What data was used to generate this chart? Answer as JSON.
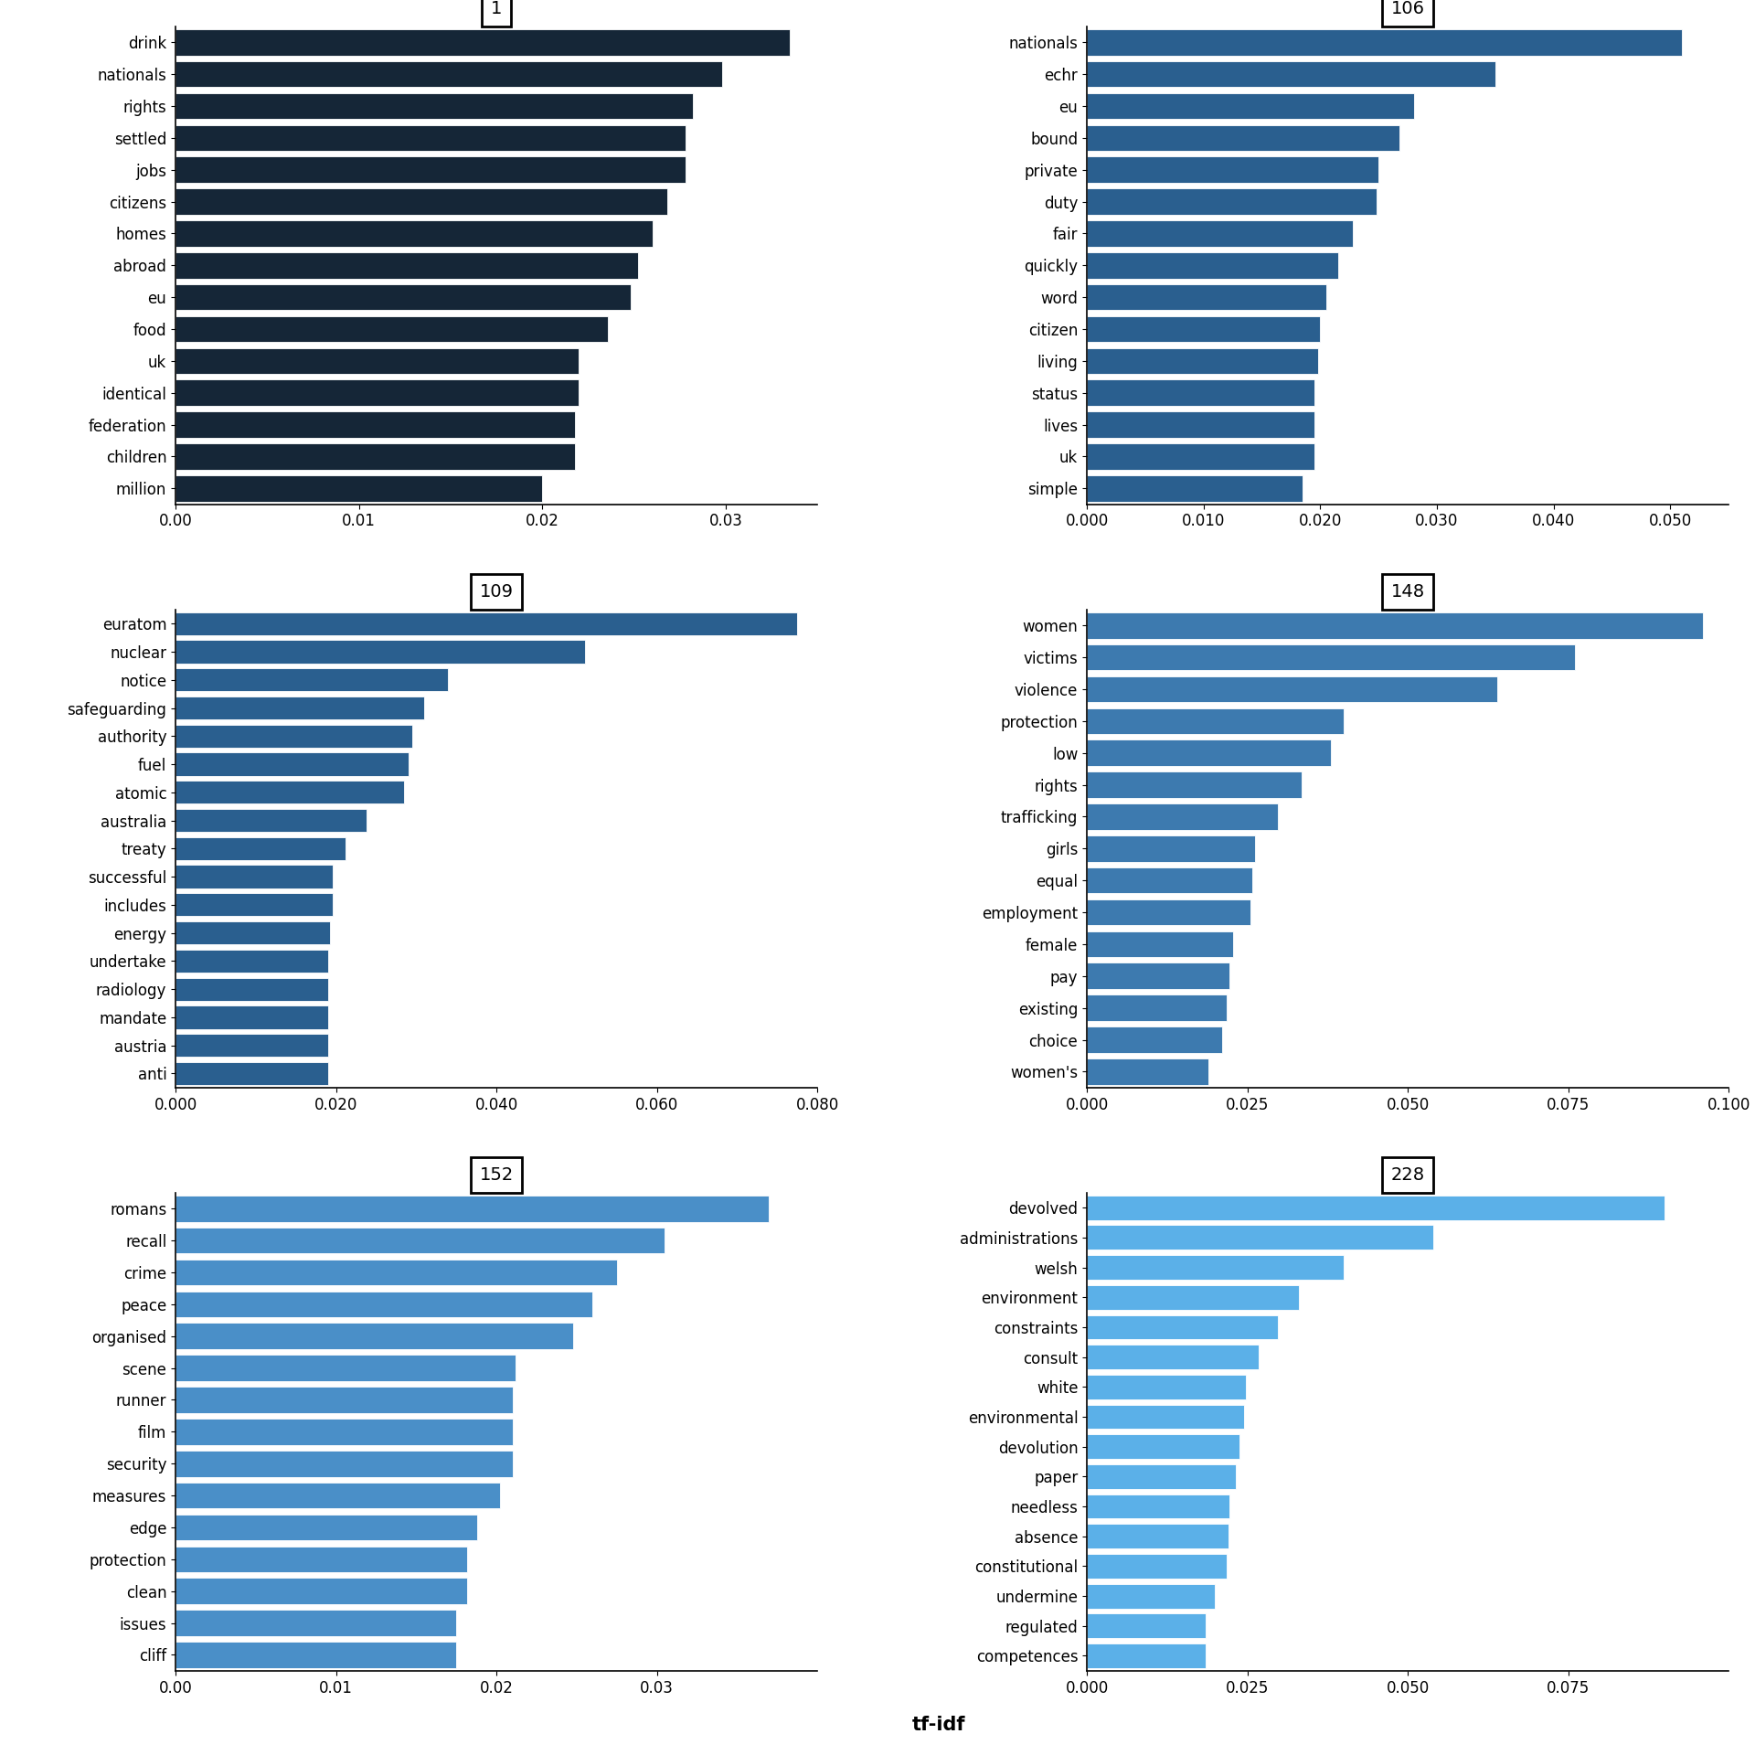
{
  "panels": [
    {
      "title": "1",
      "color": "#152637",
      "words": [
        "million",
        "children",
        "federation",
        "identical",
        "uk",
        "food",
        "eu",
        "abroad",
        "homes",
        "citizens",
        "jobs",
        "settled",
        "rights",
        "nationals",
        "drink"
      ],
      "values": [
        0.02,
        0.0218,
        0.0218,
        0.022,
        0.022,
        0.0236,
        0.0248,
        0.0252,
        0.026,
        0.0268,
        0.0278,
        0.0278,
        0.0282,
        0.0298,
        0.0335
      ],
      "xlim": [
        0,
        0.035
      ],
      "xticks": [
        0.0,
        0.01,
        0.02,
        0.03
      ]
    },
    {
      "title": "106",
      "color": "#2a5f8f",
      "words": [
        "simple",
        "uk",
        "lives",
        "status",
        "living",
        "citizen",
        "word",
        "quickly",
        "fair",
        "duty",
        "private",
        "bound",
        "eu",
        "echr",
        "nationals"
      ],
      "values": [
        0.0185,
        0.0195,
        0.0195,
        0.0195,
        0.0198,
        0.02,
        0.0205,
        0.0215,
        0.0228,
        0.0248,
        0.025,
        0.0268,
        0.028,
        0.035,
        0.051
      ],
      "xlim": [
        0,
        0.055
      ],
      "xticks": [
        0.0,
        0.01,
        0.02,
        0.03,
        0.04,
        0.05
      ]
    },
    {
      "title": "109",
      "color": "#2a5f8f",
      "words": [
        "anti",
        "austria",
        "mandate",
        "radiology",
        "undertake",
        "energy",
        "includes",
        "successful",
        "treaty",
        "australia",
        "atomic",
        "fuel",
        "authority",
        "safeguarding",
        "notice",
        "nuclear",
        "euratom"
      ],
      "values": [
        0.019,
        0.019,
        0.019,
        0.019,
        0.019,
        0.0193,
        0.0196,
        0.0196,
        0.0212,
        0.0238,
        0.0285,
        0.029,
        0.0295,
        0.031,
        0.034,
        0.051,
        0.0775
      ],
      "xlim": [
        0,
        0.08
      ],
      "xticks": [
        0.0,
        0.02,
        0.04,
        0.06,
        0.08
      ]
    },
    {
      "title": "148",
      "color": "#3d7aaf",
      "words": [
        "women's",
        "choice",
        "existing",
        "pay",
        "female",
        "employment",
        "equal",
        "girls",
        "trafficking",
        "rights",
        "low",
        "protection",
        "violence",
        "victims",
        "women"
      ],
      "values": [
        0.019,
        0.021,
        0.0218,
        0.0222,
        0.0228,
        0.0255,
        0.0258,
        0.0262,
        0.0298,
        0.0335,
        0.038,
        0.04,
        0.064,
        0.076,
        0.096
      ],
      "xlim": [
        0,
        0.1
      ],
      "xticks": [
        0.0,
        0.025,
        0.05,
        0.075,
        0.1
      ]
    },
    {
      "title": "152",
      "color": "#4a8fc8",
      "words": [
        "cliff",
        "issues",
        "clean",
        "protection",
        "edge",
        "measures",
        "security",
        "film",
        "runner",
        "scene",
        "organised",
        "peace",
        "crime",
        "recall",
        "romans"
      ],
      "values": [
        0.0175,
        0.0175,
        0.0182,
        0.0182,
        0.0188,
        0.0202,
        0.021,
        0.021,
        0.021,
        0.0212,
        0.0248,
        0.026,
        0.0275,
        0.0305,
        0.037
      ],
      "xlim": [
        0,
        0.04
      ],
      "xticks": [
        0.0,
        0.01,
        0.02,
        0.03
      ]
    },
    {
      "title": "228",
      "color": "#5bb0e8",
      "words": [
        "competences",
        "regulated",
        "undermine",
        "constitutional",
        "absence",
        "needless",
        "paper",
        "devolution",
        "environmental",
        "white",
        "consult",
        "constraints",
        "environment",
        "welsh",
        "administrations",
        "devolved"
      ],
      "values": [
        0.0185,
        0.0185,
        0.02,
        0.0218,
        0.022,
        0.0222,
        0.0232,
        0.0238,
        0.0245,
        0.0248,
        0.0268,
        0.0298,
        0.033,
        0.04,
        0.054,
        0.09
      ],
      "xlim": [
        0,
        0.1
      ],
      "xticks": [
        0.0,
        0.025,
        0.05,
        0.075
      ]
    }
  ],
  "xlabel": "tf-idf",
  "background_color": "#ffffff",
  "bar_height": 0.82,
  "title_fontsize": 14,
  "tick_fontsize": 12,
  "label_fontsize": 15
}
